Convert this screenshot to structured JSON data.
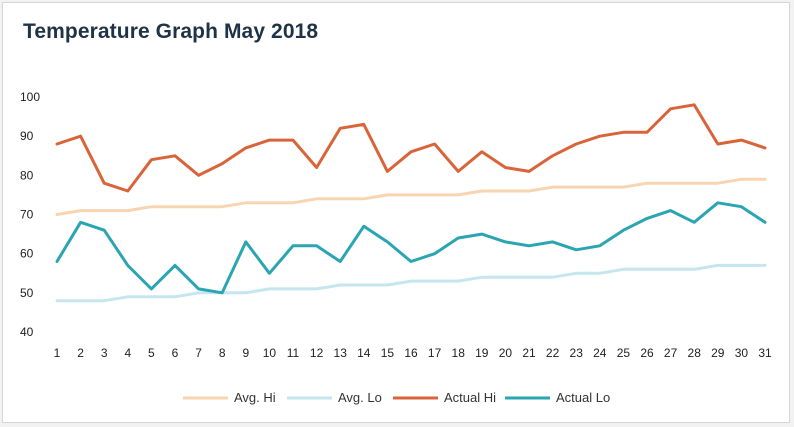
{
  "chart_data": {
    "type": "line",
    "title": "Temperature Graph May 2018",
    "xlabel": "",
    "ylabel": "",
    "ylim": [
      40,
      100
    ],
    "yticks": [
      40,
      50,
      60,
      70,
      80,
      90,
      100
    ],
    "grid": false,
    "legend_position": "bottom",
    "categories": [
      1,
      2,
      3,
      4,
      5,
      6,
      7,
      8,
      9,
      10,
      11,
      12,
      13,
      14,
      15,
      16,
      17,
      18,
      19,
      20,
      21,
      22,
      23,
      24,
      25,
      26,
      27,
      28,
      29,
      30,
      31
    ],
    "series": [
      {
        "name": "Avg. Hi",
        "color": "#f8d5b0",
        "values": [
          70,
          71,
          71,
          71,
          72,
          72,
          72,
          72,
          73,
          73,
          73,
          74,
          74,
          74,
          75,
          75,
          75,
          75,
          76,
          76,
          76,
          77,
          77,
          77,
          77,
          78,
          78,
          78,
          78,
          79,
          79
        ]
      },
      {
        "name": "Avg. Lo",
        "color": "#c5e6ee",
        "values": [
          48,
          48,
          48,
          49,
          49,
          49,
          50,
          50,
          50,
          51,
          51,
          51,
          52,
          52,
          52,
          53,
          53,
          53,
          54,
          54,
          54,
          54,
          55,
          55,
          56,
          56,
          56,
          56,
          57,
          57,
          57
        ]
      },
      {
        "name": "Actual Hi",
        "color": "#d9643a",
        "values": [
          88,
          90,
          78,
          76,
          84,
          85,
          80,
          83,
          87,
          89,
          89,
          82,
          92,
          93,
          81,
          86,
          88,
          81,
          86,
          82,
          81,
          85,
          88,
          90,
          91,
          91,
          97,
          98,
          88,
          89,
          87
        ]
      },
      {
        "name": "Actual Lo",
        "color": "#2aa5b1",
        "values": [
          58,
          68,
          66,
          57,
          51,
          57,
          51,
          50,
          63,
          55,
          62,
          62,
          58,
          67,
          63,
          58,
          60,
          64,
          65,
          63,
          62,
          63,
          61,
          62,
          66,
          69,
          71,
          68,
          73,
          72,
          68
        ]
      }
    ]
  }
}
